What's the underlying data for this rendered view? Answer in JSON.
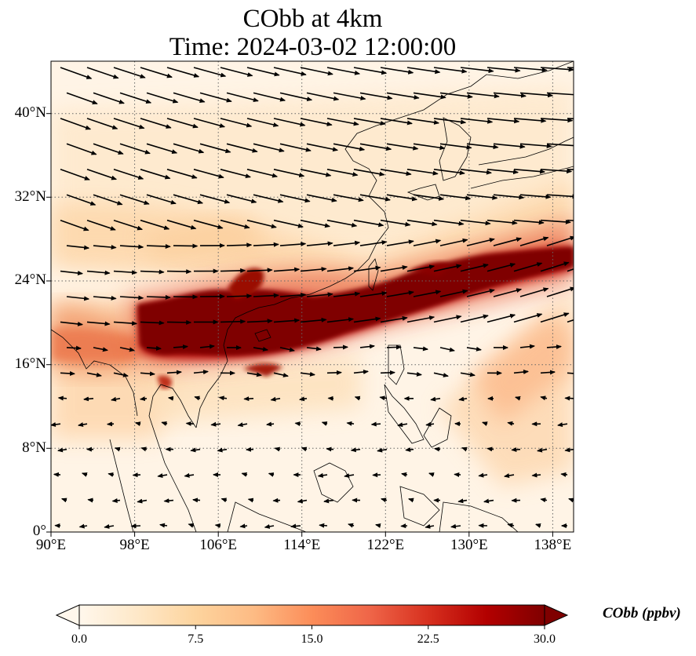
{
  "title": {
    "line1": "CObb at 4km",
    "line2": "Time: 2024-03-02 12:00:00"
  },
  "map": {
    "projection": "PlateCarree",
    "extent": {
      "lon_min": 90,
      "lon_max": 140,
      "lat_min": 0,
      "lat_max": 45
    },
    "gridlines": "dotted",
    "lat_ticks": [
      "0°",
      "8°N",
      "16°N",
      "24°N",
      "32°N",
      "40°N"
    ],
    "lon_ticks": [
      "90°E",
      "98°E",
      "106°E",
      "114°E",
      "122°E",
      "130°E",
      "138°E"
    ],
    "wind_vectors": "black arrows, westerly flow north of ~18°N, weak easterly flow south",
    "plume": "high CObb band from Indochina (~18-22°N) extending east-northeast past Taiwan to ~140°E, 27°N"
  },
  "colorbar": {
    "label": "CObb (ppbv)",
    "ticks": [
      "0.0",
      "7.5",
      "15.0",
      "22.5",
      "30.0"
    ],
    "range": [
      0,
      30
    ],
    "colormap": "OrRd",
    "extend": "both",
    "colors": [
      "#fff7ec",
      "#fee8c8",
      "#fdd49e",
      "#fdbb84",
      "#fc8d59",
      "#ef6548",
      "#d7301f",
      "#b30000",
      "#7f0000"
    ]
  }
}
